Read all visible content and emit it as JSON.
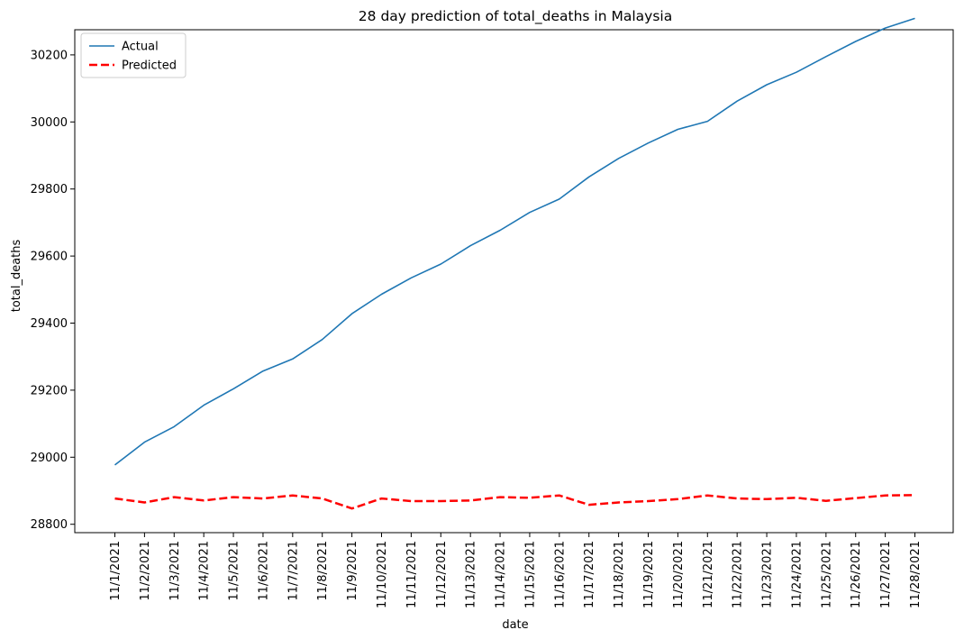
{
  "chart_data": {
    "type": "line",
    "title": "28 day prediction of total_deaths in Malaysia",
    "xlabel": "date",
    "ylabel": "total_deaths",
    "ylim": [
      28775,
      30275
    ],
    "yticks": [
      28800,
      29000,
      29200,
      29400,
      29600,
      29800,
      30000,
      30200
    ],
    "x": [
      "11/1/2021",
      "11/2/2021",
      "11/3/2021",
      "11/4/2021",
      "11/5/2021",
      "11/6/2021",
      "11/7/2021",
      "11/8/2021",
      "11/9/2021",
      "11/10/2021",
      "11/11/2021",
      "11/12/2021",
      "11/13/2021",
      "11/14/2021",
      "11/15/2021",
      "11/16/2021",
      "11/17/2021",
      "11/18/2021",
      "11/19/2021",
      "11/20/2021",
      "11/21/2021",
      "11/22/2021",
      "11/23/2021",
      "11/24/2021",
      "11/25/2021",
      "11/26/2021",
      "11/27/2021",
      "11/28/2021"
    ],
    "legend_position": "upper-left",
    "grid": false,
    "series": [
      {
        "name": "Actual",
        "color": "#1f77b4",
        "style": "solid",
        "values": [
          28977,
          29045,
          29091,
          29155,
          29204,
          29257,
          29293,
          29351,
          29428,
          29486,
          29535,
          29576,
          29631,
          29677,
          29730,
          29770,
          29836,
          29891,
          29937,
          29978,
          30002,
          30062,
          30111,
          30148,
          30195,
          30240,
          30280,
          30309
        ]
      },
      {
        "name": "Predicted",
        "color": "#ff0000",
        "style": "dashed",
        "values": [
          28877,
          28865,
          28881,
          28871,
          28881,
          28877,
          28886,
          28877,
          28847,
          28877,
          28869,
          28869,
          28871,
          28881,
          28879,
          28886,
          28858,
          28865,
          28869,
          28875,
          28886,
          28877,
          28875,
          28879,
          28870,
          28878,
          28886,
          28887
        ]
      }
    ]
  }
}
